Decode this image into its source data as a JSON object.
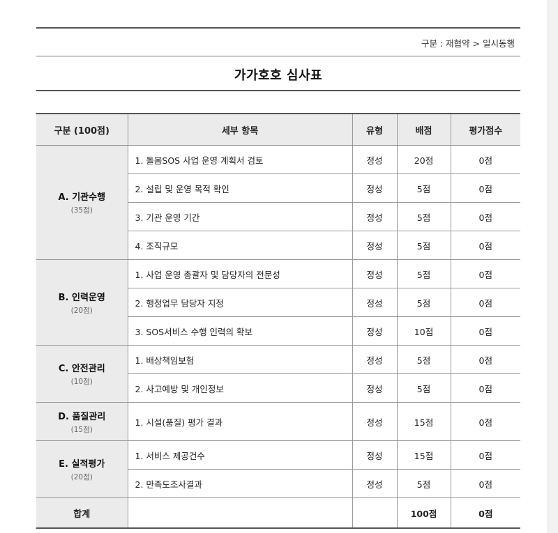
{
  "breadcrumb": {
    "category": "구분 : 재협약",
    "separator": ">",
    "current": "일시동행"
  },
  "title": "가가호호 심사표",
  "table": {
    "headers": [
      "구분 (100점)",
      "세부 항목",
      "유형",
      "배점",
      "평가점수"
    ],
    "groups": [
      {
        "name": "A. 기관수행",
        "points": "(35점)",
        "items": [
          {
            "label": "1. 돌봄SOS 사업 운영 계획서 검토",
            "type": "정성",
            "max": "20점",
            "score": "0점"
          },
          {
            "label": "2. 설립 및 운영 목적 확인",
            "type": "정성",
            "max": "5점",
            "score": "0점"
          },
          {
            "label": "3. 기관 운영 기간",
            "type": "정성",
            "max": "5점",
            "score": "0점"
          },
          {
            "label": "4. 조직규모",
            "type": "정성",
            "max": "5점",
            "score": "0점"
          }
        ]
      },
      {
        "name": "B. 인력운영",
        "points": "(20점)",
        "items": [
          {
            "label": "1. 사업 운영 총괄자 및 담당자의 전문성",
            "type": "정성",
            "max": "5점",
            "score": "0점"
          },
          {
            "label": "2. 행정업무 담당자 지정",
            "type": "정성",
            "max": "5점",
            "score": "0점"
          },
          {
            "label": "3. SOS서비스 수행 인력의 확보",
            "type": "정성",
            "max": "10점",
            "score": "0점"
          }
        ]
      },
      {
        "name": "C. 안전관리",
        "points": "(10점)",
        "items": [
          {
            "label": "1. 배상책임보험",
            "type": "정성",
            "max": "5점",
            "score": "0점"
          },
          {
            "label": "2. 사고예방 및 개인정보",
            "type": "정성",
            "max": "5점",
            "score": "0점"
          }
        ]
      },
      {
        "name": "D. 품질관리",
        "points": "(15점)",
        "items": [
          {
            "label": "1. 시설(품질) 평가 결과",
            "type": "정성",
            "max": "15점",
            "score": "0점"
          }
        ]
      },
      {
        "name": "E. 실적평가",
        "points": "(20점)",
        "items": [
          {
            "label": "1. 서비스 제공건수",
            "type": "정성",
            "max": "15점",
            "score": "0점"
          },
          {
            "label": "2. 만족도조사결과",
            "type": "정성",
            "max": "5점",
            "score": "0점"
          }
        ]
      }
    ],
    "total": {
      "label": "합계",
      "max": "100점",
      "score": "0점"
    }
  }
}
